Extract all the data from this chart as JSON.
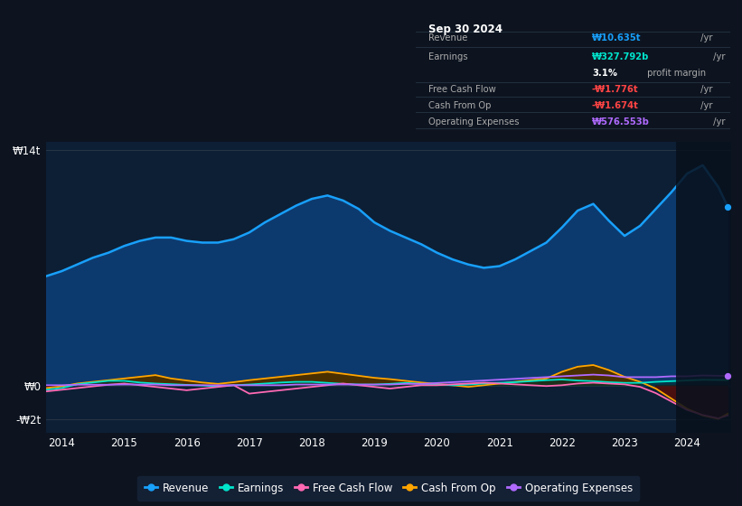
{
  "background_color": "#0d1420",
  "plot_bg_color": "#0d1f35",
  "tooltip_bg": "#0a0a0a",
  "years": [
    2013.75,
    2014.0,
    2014.25,
    2014.5,
    2014.75,
    2015.0,
    2015.25,
    2015.5,
    2015.75,
    2016.0,
    2016.25,
    2016.5,
    2016.75,
    2017.0,
    2017.25,
    2017.5,
    2017.75,
    2018.0,
    2018.25,
    2018.5,
    2018.75,
    2019.0,
    2019.25,
    2019.5,
    2019.75,
    2020.0,
    2020.25,
    2020.5,
    2020.75,
    2021.0,
    2021.25,
    2021.5,
    2021.75,
    2022.0,
    2022.25,
    2022.5,
    2022.75,
    2023.0,
    2023.25,
    2023.5,
    2023.75,
    2024.0,
    2024.25,
    2024.5,
    2024.65
  ],
  "revenue": [
    6.5,
    6.8,
    7.2,
    7.6,
    7.9,
    8.3,
    8.6,
    8.8,
    8.8,
    8.6,
    8.5,
    8.5,
    8.7,
    9.1,
    9.7,
    10.2,
    10.7,
    11.1,
    11.3,
    11.0,
    10.5,
    9.7,
    9.2,
    8.8,
    8.4,
    7.9,
    7.5,
    7.2,
    7.0,
    7.1,
    7.5,
    8.0,
    8.5,
    9.4,
    10.4,
    10.8,
    9.8,
    8.9,
    9.5,
    10.5,
    11.5,
    12.6,
    13.1,
    11.8,
    10.635
  ],
  "earnings": [
    -0.25,
    -0.15,
    0.08,
    0.18,
    0.28,
    0.28,
    0.18,
    0.12,
    0.08,
    0.04,
    0.0,
    -0.04,
    0.02,
    0.06,
    0.12,
    0.18,
    0.22,
    0.22,
    0.16,
    0.1,
    0.06,
    0.06,
    0.1,
    0.16,
    0.1,
    0.06,
    0.02,
    0.06,
    0.12,
    0.16,
    0.2,
    0.26,
    0.32,
    0.36,
    0.3,
    0.26,
    0.2,
    0.16,
    0.16,
    0.22,
    0.26,
    0.3,
    0.34,
    0.33,
    0.328
  ],
  "free_cash_flow": [
    -0.35,
    -0.25,
    -0.15,
    -0.05,
    0.05,
    0.12,
    0.02,
    -0.08,
    -0.18,
    -0.28,
    -0.18,
    -0.08,
    0.02,
    -0.48,
    -0.38,
    -0.28,
    -0.18,
    -0.08,
    0.02,
    0.12,
    0.02,
    -0.08,
    -0.18,
    -0.08,
    0.02,
    0.02,
    0.07,
    0.12,
    0.17,
    0.12,
    0.07,
    0.02,
    -0.03,
    0.02,
    0.12,
    0.17,
    0.12,
    0.07,
    -0.08,
    -0.45,
    -0.95,
    -1.45,
    -1.75,
    -1.95,
    -1.776
  ],
  "cash_from_op": [
    -0.15,
    -0.05,
    0.12,
    0.22,
    0.32,
    0.42,
    0.52,
    0.62,
    0.42,
    0.3,
    0.18,
    0.1,
    0.2,
    0.32,
    0.42,
    0.52,
    0.62,
    0.72,
    0.82,
    0.7,
    0.58,
    0.46,
    0.38,
    0.28,
    0.18,
    0.1,
    0.02,
    -0.08,
    0.02,
    0.12,
    0.22,
    0.32,
    0.42,
    0.82,
    1.12,
    1.22,
    0.92,
    0.52,
    0.22,
    -0.18,
    -0.78,
    -1.38,
    -1.78,
    -1.98,
    -1.674
  ],
  "operating_expenses": [
    0.02,
    0.02,
    0.05,
    0.05,
    0.05,
    0.06,
    0.06,
    0.06,
    0.02,
    0.02,
    0.02,
    0.02,
    0.02,
    0.02,
    0.02,
    0.02,
    0.06,
    0.06,
    0.06,
    0.06,
    0.06,
    0.06,
    0.06,
    0.1,
    0.1,
    0.15,
    0.2,
    0.25,
    0.3,
    0.35,
    0.4,
    0.45,
    0.5,
    0.55,
    0.6,
    0.65,
    0.6,
    0.5,
    0.5,
    0.5,
    0.55,
    0.55,
    0.6,
    0.58,
    0.577
  ],
  "revenue_color": "#18a0fb",
  "revenue_fill": "#0d3a6e",
  "earnings_color": "#00e5cc",
  "free_cash_flow_color": "#ff69b4",
  "cash_from_op_color": "#ffa500",
  "operating_expenses_color": "#b06aff",
  "xlim": [
    2013.75,
    2024.7
  ],
  "ylim": [
    -2.8,
    14.5
  ],
  "xticks": [
    2014,
    2015,
    2016,
    2017,
    2018,
    2019,
    2020,
    2021,
    2022,
    2023,
    2024
  ],
  "ytick_vals": [
    -2,
    0,
    14
  ],
  "ytick_labels": [
    "-₩2t",
    "₩0",
    "₩14t"
  ],
  "legend": [
    {
      "label": "Revenue",
      "color": "#18a0fb"
    },
    {
      "label": "Earnings",
      "color": "#00e5cc"
    },
    {
      "label": "Free Cash Flow",
      "color": "#ff69b4"
    },
    {
      "label": "Cash From Op",
      "color": "#ffa500"
    },
    {
      "label": "Operating Expenses",
      "color": "#b06aff"
    }
  ],
  "tooltip": {
    "title": "Sep 30 2024",
    "rows": [
      {
        "label": "Revenue",
        "value": "₩10.635t",
        "suffix": " /yr",
        "color": "#18a0fb"
      },
      {
        "label": "Earnings",
        "value": "₩327.792b",
        "suffix": " /yr",
        "color": "#00e5cc"
      },
      {
        "label": "",
        "value": "3.1%",
        "suffix": " profit margin",
        "color": "#ffffff",
        "suffix_color": "#aaaaaa"
      },
      {
        "label": "Free Cash Flow",
        "value": "-₩1.776t",
        "suffix": " /yr",
        "color": "#ff4444"
      },
      {
        "label": "Cash From Op",
        "value": "-₩1.674t",
        "suffix": " /yr",
        "color": "#ff4444"
      },
      {
        "label": "Operating Expenses",
        "value": "₩576.553b",
        "suffix": " /yr",
        "color": "#b06aff"
      }
    ]
  }
}
